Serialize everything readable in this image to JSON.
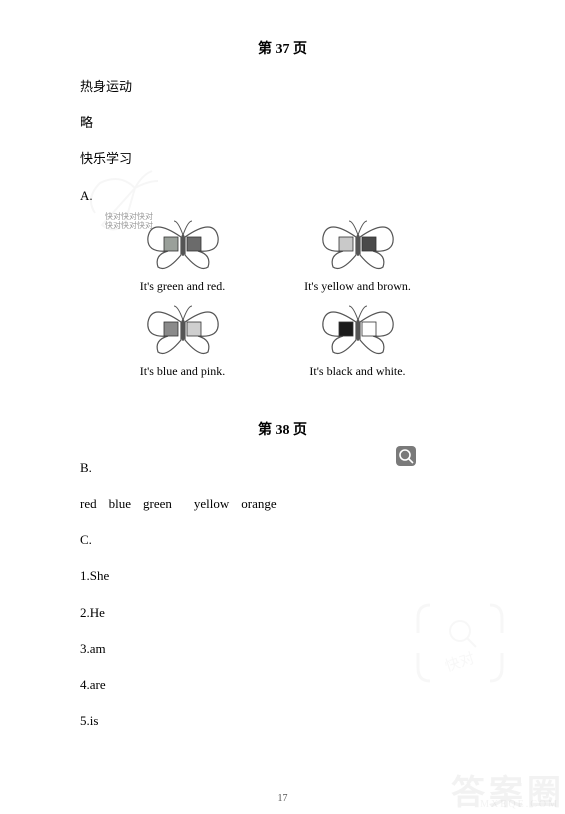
{
  "page37": {
    "title": "第 37 页",
    "warmup": "热身运动",
    "omit": "略",
    "happy": "快乐学习",
    "A": "A.",
    "butterflies": [
      {
        "caption": "It's green and red.",
        "left_fill": "#9aa09a",
        "right_fill": "#6b6b6b",
        "left_is_square": true,
        "right_is_square": true,
        "stroke": "#555"
      },
      {
        "caption": "It's yellow and brown.",
        "left_fill": "#c9c9c9",
        "right_fill": "#4a4a4a",
        "left_is_square": true,
        "right_is_square": false,
        "stroke": "#555"
      },
      {
        "caption": "It's blue and pink.",
        "left_fill": "#8a8a8a",
        "right_fill": "#cfcfcf",
        "left_is_square": true,
        "right_is_square": true,
        "stroke": "#555"
      },
      {
        "caption": "It's black and white.",
        "left_fill": "#1a1a1a",
        "right_fill": "#ffffff",
        "left_is_square": true,
        "right_is_square": true,
        "stroke": "#555"
      }
    ]
  },
  "page38": {
    "title": "第 38 页",
    "B": "B.",
    "colors": [
      "red",
      "blue",
      "green",
      "yellow",
      "orange"
    ],
    "C": "C.",
    "answers": {
      "1": "1.She",
      "2": "2.He",
      "3": "3.am",
      "4": "4.are",
      "5": "5.is"
    }
  },
  "pageNumber": "17",
  "watermarks": {
    "carrot_stroke": "#b8b8b8",
    "kuaidui_text": "快对快对快对",
    "kuaidui_text2": "快对快对快对",
    "answer_circle": "答案圈",
    "mxeqe": "MXEQE.COM",
    "kd_big": "快对"
  }
}
